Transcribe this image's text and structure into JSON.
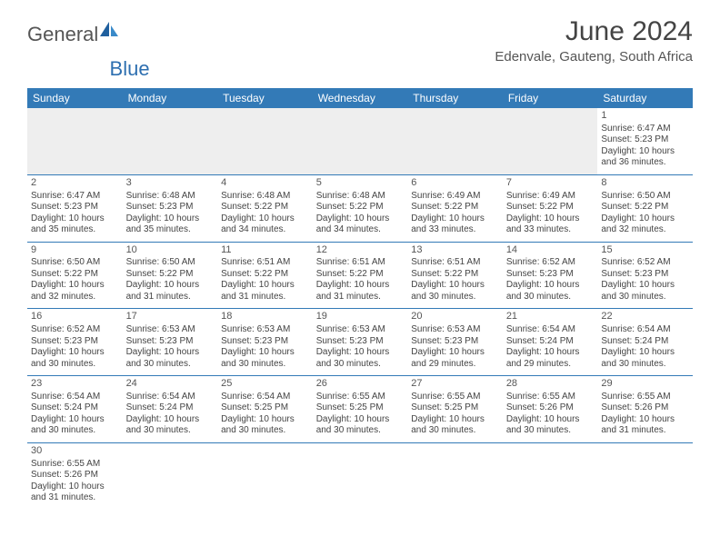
{
  "logo": {
    "text1": "General",
    "text2": "Blue"
  },
  "title": "June 2024",
  "subtitle": "Edenvale, Gauteng, South Africa",
  "colors": {
    "header_bg": "#337ab7",
    "header_text": "#ffffff",
    "row_divider": "#337ab7",
    "empty_bg": "#eeeeee",
    "text": "#444444",
    "logo_blue": "#2e6fb0"
  },
  "dayHeaders": [
    "Sunday",
    "Monday",
    "Tuesday",
    "Wednesday",
    "Thursday",
    "Friday",
    "Saturday"
  ],
  "weeks": [
    [
      null,
      null,
      null,
      null,
      null,
      null,
      {
        "n": "1",
        "sr": "6:47 AM",
        "ss": "5:23 PM",
        "dl": "10 hours and 36 minutes."
      }
    ],
    [
      {
        "n": "2",
        "sr": "6:47 AM",
        "ss": "5:23 PM",
        "dl": "10 hours and 35 minutes."
      },
      {
        "n": "3",
        "sr": "6:48 AM",
        "ss": "5:23 PM",
        "dl": "10 hours and 35 minutes."
      },
      {
        "n": "4",
        "sr": "6:48 AM",
        "ss": "5:22 PM",
        "dl": "10 hours and 34 minutes."
      },
      {
        "n": "5",
        "sr": "6:48 AM",
        "ss": "5:22 PM",
        "dl": "10 hours and 34 minutes."
      },
      {
        "n": "6",
        "sr": "6:49 AM",
        "ss": "5:22 PM",
        "dl": "10 hours and 33 minutes."
      },
      {
        "n": "7",
        "sr": "6:49 AM",
        "ss": "5:22 PM",
        "dl": "10 hours and 33 minutes."
      },
      {
        "n": "8",
        "sr": "6:50 AM",
        "ss": "5:22 PM",
        "dl": "10 hours and 32 minutes."
      }
    ],
    [
      {
        "n": "9",
        "sr": "6:50 AM",
        "ss": "5:22 PM",
        "dl": "10 hours and 32 minutes."
      },
      {
        "n": "10",
        "sr": "6:50 AM",
        "ss": "5:22 PM",
        "dl": "10 hours and 31 minutes."
      },
      {
        "n": "11",
        "sr": "6:51 AM",
        "ss": "5:22 PM",
        "dl": "10 hours and 31 minutes."
      },
      {
        "n": "12",
        "sr": "6:51 AM",
        "ss": "5:22 PM",
        "dl": "10 hours and 31 minutes."
      },
      {
        "n": "13",
        "sr": "6:51 AM",
        "ss": "5:22 PM",
        "dl": "10 hours and 30 minutes."
      },
      {
        "n": "14",
        "sr": "6:52 AM",
        "ss": "5:23 PM",
        "dl": "10 hours and 30 minutes."
      },
      {
        "n": "15",
        "sr": "6:52 AM",
        "ss": "5:23 PM",
        "dl": "10 hours and 30 minutes."
      }
    ],
    [
      {
        "n": "16",
        "sr": "6:52 AM",
        "ss": "5:23 PM",
        "dl": "10 hours and 30 minutes."
      },
      {
        "n": "17",
        "sr": "6:53 AM",
        "ss": "5:23 PM",
        "dl": "10 hours and 30 minutes."
      },
      {
        "n": "18",
        "sr": "6:53 AM",
        "ss": "5:23 PM",
        "dl": "10 hours and 30 minutes."
      },
      {
        "n": "19",
        "sr": "6:53 AM",
        "ss": "5:23 PM",
        "dl": "10 hours and 30 minutes."
      },
      {
        "n": "20",
        "sr": "6:53 AM",
        "ss": "5:23 PM",
        "dl": "10 hours and 29 minutes."
      },
      {
        "n": "21",
        "sr": "6:54 AM",
        "ss": "5:24 PM",
        "dl": "10 hours and 29 minutes."
      },
      {
        "n": "22",
        "sr": "6:54 AM",
        "ss": "5:24 PM",
        "dl": "10 hours and 30 minutes."
      }
    ],
    [
      {
        "n": "23",
        "sr": "6:54 AM",
        "ss": "5:24 PM",
        "dl": "10 hours and 30 minutes."
      },
      {
        "n": "24",
        "sr": "6:54 AM",
        "ss": "5:24 PM",
        "dl": "10 hours and 30 minutes."
      },
      {
        "n": "25",
        "sr": "6:54 AM",
        "ss": "5:25 PM",
        "dl": "10 hours and 30 minutes."
      },
      {
        "n": "26",
        "sr": "6:55 AM",
        "ss": "5:25 PM",
        "dl": "10 hours and 30 minutes."
      },
      {
        "n": "27",
        "sr": "6:55 AM",
        "ss": "5:25 PM",
        "dl": "10 hours and 30 minutes."
      },
      {
        "n": "28",
        "sr": "6:55 AM",
        "ss": "5:26 PM",
        "dl": "10 hours and 30 minutes."
      },
      {
        "n": "29",
        "sr": "6:55 AM",
        "ss": "5:26 PM",
        "dl": "10 hours and 31 minutes."
      }
    ],
    [
      {
        "n": "30",
        "sr": "6:55 AM",
        "ss": "5:26 PM",
        "dl": "10 hours and 31 minutes."
      },
      null,
      null,
      null,
      null,
      null,
      null
    ]
  ],
  "labels": {
    "sunrise": "Sunrise:",
    "sunset": "Sunset:",
    "daylight": "Daylight:"
  }
}
